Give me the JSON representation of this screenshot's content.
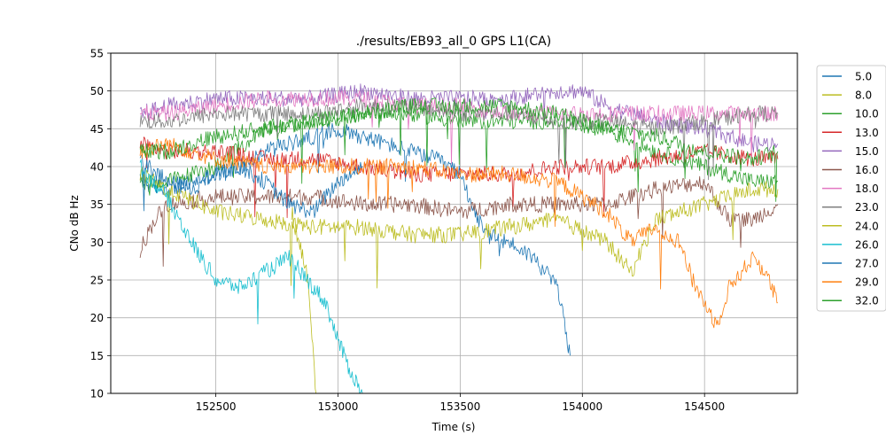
{
  "chart_data": {
    "type": "line",
    "title": "./results/EB93_all_0 GPS L1(CA)",
    "xlabel": "Time (s)",
    "ylabel": "CNo dB Hz",
    "xlim": [
      152070,
      154880
    ],
    "ylim": [
      10,
      55
    ],
    "xticks": [
      152500,
      153000,
      153500,
      154000,
      154500
    ],
    "yticks": [
      10,
      15,
      20,
      25,
      30,
      35,
      40,
      45,
      50,
      55
    ],
    "grid": true,
    "legend_position": "outside-right",
    "note": "Dense noisy per-second CNo traces; values below are approximate control points per series.",
    "series": [
      {
        "name": "5.0",
        "color": "#1f77b4",
        "x": [
          152190,
          152300,
          152400,
          152500,
          152600,
          152700,
          152800,
          152900,
          153000,
          153100,
          153200,
          153300,
          153400,
          153500,
          153550,
          153600,
          153700,
          153800,
          153900,
          153950
        ],
        "y": [
          38,
          37,
          38,
          39,
          40,
          42,
          43,
          44,
          45,
          44,
          43,
          42,
          41,
          39,
          35,
          31,
          30,
          28,
          24,
          15
        ]
      },
      {
        "name": "8.0",
        "color": "#bcbd22",
        "x": [
          152810,
          152840,
          152870,
          152890,
          152900,
          152910
        ],
        "y": [
          34,
          30,
          26,
          20,
          14,
          10
        ]
      },
      {
        "name": "10.0",
        "color": "#2ca02c",
        "x": [
          152190,
          152300,
          152500,
          152700,
          152900,
          153100,
          153300,
          153500,
          153700,
          153900,
          154100,
          154300,
          154500,
          154700,
          154800
        ],
        "y": [
          38,
          38,
          40,
          45,
          46,
          47,
          47,
          46,
          46,
          46,
          45,
          42,
          40,
          38,
          38
        ]
      },
      {
        "name": "13.0",
        "color": "#d62728",
        "x": [
          152190,
          152300,
          152500,
          152700,
          152900,
          153100,
          153300,
          153500,
          153700,
          153900,
          154100,
          154300,
          154500,
          154700,
          154800
        ],
        "y": [
          43,
          42,
          42,
          41,
          41,
          40,
          39,
          39,
          39,
          40,
          40,
          41,
          42,
          41,
          41
        ]
      },
      {
        "name": "15.0",
        "color": "#9467bd",
        "x": [
          152190,
          152300,
          152500,
          152700,
          152900,
          153100,
          153300,
          153500,
          153700,
          153900,
          154000,
          154100,
          154300,
          154500,
          154700,
          154800
        ],
        "y": [
          47,
          48,
          49,
          49,
          49,
          50,
          49,
          49,
          49,
          50,
          50,
          48,
          46,
          45,
          43,
          43
        ]
      },
      {
        "name": "16.0",
        "color": "#8c564b",
        "x": [
          152190,
          152250,
          152300,
          152500,
          152700,
          152900,
          153100,
          153300,
          153500,
          153700,
          153900,
          154100,
          154300,
          154500,
          154600,
          154700,
          154800
        ],
        "y": [
          29,
          33,
          35,
          36,
          36,
          36,
          35,
          35,
          34,
          35,
          35,
          35,
          37,
          38,
          33,
          33,
          35
        ]
      },
      {
        "name": "18.0",
        "color": "#e377c2",
        "x": [
          152190,
          152300,
          152500,
          152700,
          152900,
          153100,
          153300,
          153500,
          153700,
          153900,
          154100,
          154300,
          154500,
          154700,
          154800
        ],
        "y": [
          47,
          47,
          48,
          49,
          49,
          49,
          48,
          48,
          47,
          47,
          47,
          47,
          47,
          47,
          47
        ]
      },
      {
        "name": "23.0",
        "color": "#7f7f7f",
        "x": [
          152190,
          152300,
          152500,
          152700,
          152900,
          153100,
          153300,
          153500,
          153700,
          153900,
          154100,
          154300,
          154500,
          154700,
          154800
        ],
        "y": [
          46,
          46,
          47,
          47,
          47,
          48,
          48,
          47,
          47,
          46,
          46,
          45,
          46,
          47,
          47
        ]
      },
      {
        "name": "24.0",
        "color": "#bcbd22",
        "x": [
          152190,
          152300,
          152500,
          152700,
          152900,
          153100,
          153300,
          153500,
          153700,
          153900,
          154100,
          154200,
          154300,
          154500,
          154700,
          154800
        ],
        "y": [
          39,
          37,
          34,
          33,
          32,
          32,
          31,
          31,
          32,
          33,
          30,
          26,
          33,
          35,
          37,
          37
        ]
      },
      {
        "name": "26.0",
        "color": "#17becf",
        "x": [
          152190,
          152300,
          152400,
          152500,
          152600,
          152700,
          152800,
          152900,
          152950,
          153000,
          153050,
          153100
        ],
        "y": [
          40,
          36,
          30,
          25,
          24,
          26,
          28,
          24,
          22,
          17,
          13,
          10
        ]
      },
      {
        "name": "27.0",
        "color": "#1f77b4",
        "x": [
          152190,
          152300,
          152400,
          152500,
          152600,
          152700,
          152800,
          152900,
          153000,
          153100
        ],
        "y": [
          41,
          38,
          37,
          39,
          40,
          38,
          35,
          34,
          38,
          40
        ]
      },
      {
        "name": "29.0",
        "color": "#ff7f0e",
        "x": [
          152190,
          152300,
          152500,
          152700,
          152900,
          153100,
          153300,
          153500,
          153700,
          153900,
          154100,
          154200,
          154300,
          154400,
          154450,
          154500,
          154550,
          154600,
          154700,
          154750,
          154800
        ],
        "y": [
          42,
          43,
          41,
          40,
          40,
          40,
          40,
          39,
          39,
          38,
          34,
          30,
          32,
          30,
          25,
          22,
          19,
          24,
          28,
          26,
          22
        ]
      },
      {
        "name": "32.0",
        "color": "#2ca02c",
        "x": [
          152190,
          152300,
          152500,
          152700,
          152900,
          153100,
          153300,
          153500,
          153700,
          153900,
          154100,
          154300,
          154500,
          154700,
          154800
        ],
        "y": [
          42,
          42,
          44,
          45,
          46,
          47,
          48,
          48,
          48,
          47,
          45,
          44,
          42,
          41,
          42
        ]
      }
    ]
  }
}
